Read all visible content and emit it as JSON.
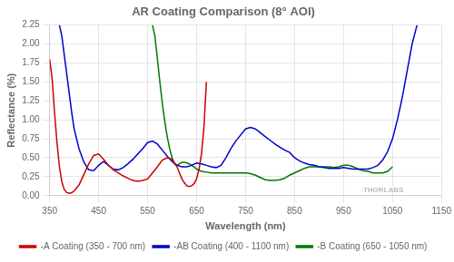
{
  "chart_data": {
    "type": "line",
    "title": "AR Coating Comparison (8° AOI)",
    "xlabel": "Wavelength (nm)",
    "ylabel": "Reflectance (%)",
    "xlim": [
      350,
      1150
    ],
    "ylim": [
      0,
      2.25
    ],
    "xticks": [
      350,
      450,
      550,
      650,
      750,
      850,
      950,
      1050,
      1150
    ],
    "yticks": [
      {
        "value": 0,
        "label": "0.00"
      },
      0.25,
      {
        "value": 0.5,
        "label": "0.50"
      },
      0.75,
      {
        "value": 1,
        "label": "1.00"
      },
      1.25,
      {
        "value": 1.5,
        "label": "1.50"
      },
      1.75,
      {
        "value": 2,
        "label": "2.00"
      },
      2.25
    ],
    "grid": true,
    "legend": "bottom",
    "annotations": [
      "THORLABS"
    ],
    "series": [
      {
        "name": "-A Coating (350 - 700 nm)",
        "color": "#cc0000",
        "x": [
          350,
          355,
          360,
          365,
          370,
          375,
          380,
          385,
          390,
          395,
          400,
          410,
          420,
          430,
          440,
          450,
          460,
          470,
          480,
          490,
          500,
          510,
          520,
          530,
          540,
          550,
          560,
          570,
          580,
          590,
          600,
          610,
          615,
          620,
          625,
          630,
          635,
          640,
          645,
          650,
          655,
          660,
          665,
          670
        ],
        "values": [
          1.8,
          1.55,
          1.1,
          0.7,
          0.38,
          0.18,
          0.08,
          0.04,
          0.03,
          0.04,
          0.06,
          0.14,
          0.28,
          0.42,
          0.53,
          0.55,
          0.48,
          0.4,
          0.34,
          0.3,
          0.26,
          0.23,
          0.2,
          0.19,
          0.2,
          0.22,
          0.3,
          0.38,
          0.47,
          0.5,
          0.48,
          0.38,
          0.3,
          0.22,
          0.17,
          0.13,
          0.12,
          0.13,
          0.16,
          0.22,
          0.35,
          0.55,
          0.9,
          1.5
        ]
      },
      {
        "name": "-AB Coating (400 - 1100 nm)",
        "color": "#0000cc",
        "x": [
          370,
          375,
          380,
          385,
          390,
          395,
          400,
          410,
          420,
          430,
          440,
          450,
          460,
          470,
          480,
          490,
          500,
          510,
          520,
          530,
          540,
          550,
          560,
          570,
          580,
          590,
          600,
          610,
          620,
          630,
          640,
          650,
          660,
          670,
          680,
          690,
          700,
          710,
          720,
          730,
          740,
          750,
          760,
          770,
          780,
          790,
          800,
          810,
          820,
          830,
          840,
          850,
          860,
          870,
          880,
          890,
          900,
          910,
          920,
          930,
          940,
          950,
          960,
          970,
          980,
          990,
          1000,
          1010,
          1020,
          1030,
          1040,
          1050,
          1060,
          1070,
          1080,
          1090,
          1100
        ],
        "values": [
          2.25,
          2.1,
          1.85,
          1.6,
          1.35,
          1.1,
          0.88,
          0.62,
          0.44,
          0.34,
          0.33,
          0.4,
          0.45,
          0.4,
          0.35,
          0.34,
          0.37,
          0.42,
          0.48,
          0.55,
          0.62,
          0.7,
          0.72,
          0.68,
          0.6,
          0.52,
          0.45,
          0.4,
          0.38,
          0.38,
          0.4,
          0.43,
          0.42,
          0.4,
          0.38,
          0.37,
          0.4,
          0.5,
          0.62,
          0.72,
          0.8,
          0.88,
          0.9,
          0.88,
          0.83,
          0.78,
          0.73,
          0.68,
          0.64,
          0.6,
          0.57,
          0.5,
          0.46,
          0.43,
          0.41,
          0.4,
          0.38,
          0.37,
          0.36,
          0.36,
          0.36,
          0.37,
          0.36,
          0.35,
          0.35,
          0.35,
          0.35,
          0.37,
          0.4,
          0.47,
          0.58,
          0.75,
          1.0,
          1.3,
          1.65,
          2.0,
          2.25
        ]
      },
      {
        "name": "-B Coating (650 - 1050 nm)",
        "color": "#007700",
        "x": [
          560,
          565,
          570,
          575,
          580,
          585,
          590,
          595,
          600,
          605,
          610,
          615,
          620,
          625,
          630,
          635,
          640,
          645,
          650,
          660,
          670,
          680,
          690,
          700,
          710,
          720,
          730,
          740,
          750,
          760,
          770,
          780,
          790,
          800,
          810,
          820,
          830,
          840,
          850,
          860,
          870,
          880,
          890,
          900,
          910,
          920,
          930,
          940,
          950,
          960,
          970,
          980,
          990,
          1000,
          1010,
          1020,
          1030,
          1040,
          1050
        ],
        "values": [
          2.25,
          2.1,
          1.8,
          1.5,
          1.22,
          0.98,
          0.78,
          0.62,
          0.5,
          0.42,
          0.4,
          0.42,
          0.44,
          0.44,
          0.43,
          0.42,
          0.4,
          0.38,
          0.35,
          0.32,
          0.31,
          0.3,
          0.3,
          0.3,
          0.3,
          0.3,
          0.3,
          0.3,
          0.3,
          0.29,
          0.27,
          0.24,
          0.21,
          0.2,
          0.2,
          0.21,
          0.23,
          0.27,
          0.3,
          0.33,
          0.36,
          0.38,
          0.38,
          0.38,
          0.38,
          0.38,
          0.37,
          0.38,
          0.4,
          0.4,
          0.38,
          0.35,
          0.33,
          0.32,
          0.3,
          0.3,
          0.3,
          0.32,
          0.38
        ]
      }
    ]
  }
}
